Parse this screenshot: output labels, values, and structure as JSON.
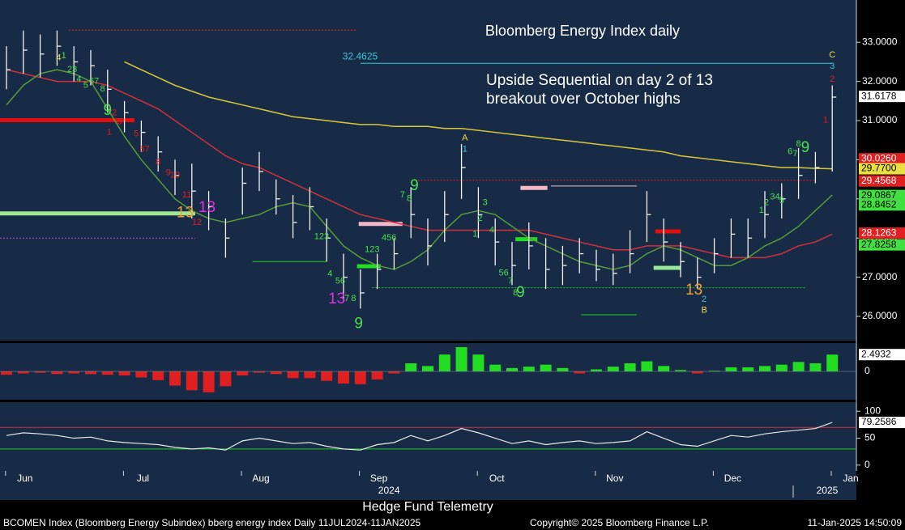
{
  "chart_data": {
    "type": "ohlc",
    "title": "Bloomberg Energy Index daily",
    "annotations": {
      "line1": "Upside Sequential on day 2 of 13",
      "line2": "breakout over October highs"
    },
    "level_line": {
      "value": 32.4625,
      "label": "32.4625",
      "color": "#3cc8d8",
      "from": 21,
      "to": 49
    },
    "categories": [
      null,
      "Jun",
      null,
      null,
      null,
      null,
      null,
      null,
      "Jul",
      null,
      null,
      null,
      null,
      null,
      null,
      "Aug",
      null,
      null,
      null,
      null,
      null,
      null,
      "Sep",
      null,
      null,
      null,
      null,
      null,
      null,
      "Oct",
      null,
      null,
      null,
      null,
      null,
      null,
      "Nov",
      null,
      null,
      null,
      null,
      null,
      null,
      "Dec",
      null,
      null,
      null,
      null,
      null,
      null,
      "Jan"
    ],
    "year_labels": [
      {
        "label": "2024",
        "at": 22.7
      },
      {
        "label": "2025",
        "at": 48.7
      }
    ],
    "high": [
      32.9,
      33.3,
      33.2,
      33.3,
      32.9,
      32.8,
      32.3,
      31.5,
      31.0,
      30.6,
      30.0,
      29.9,
      29.2,
      28.5,
      29.8,
      30.2,
      29.5,
      29.1,
      29.3,
      28.5,
      27.6,
      27.2,
      27.6,
      28.0,
      29.3,
      28.5,
      29.2,
      30.4,
      29.3,
      28.5,
      27.9,
      28.4,
      28.0,
      27.8,
      28.0,
      27.7,
      27.6,
      28.2,
      29.2,
      28.5,
      27.9,
      27.5,
      28.0,
      28.5,
      28.5,
      29.2,
      29.4,
      30.3,
      30.2,
      31.9,
      null
    ],
    "low": [
      31.8,
      32.2,
      32.1,
      32.4,
      32.0,
      31.9,
      31.2,
      30.7,
      30.2,
      29.7,
      29.1,
      28.5,
      28.2,
      27.5,
      28.6,
      29.2,
      28.6,
      28.0,
      28.2,
      27.4,
      26.4,
      26.2,
      26.7,
      27.2,
      28.0,
      27.3,
      27.9,
      29.0,
      28.0,
      27.3,
      26.8,
      27.2,
      26.7,
      26.8,
      27.1,
      26.9,
      26.8,
      27.1,
      27.9,
      27.4,
      27.0,
      26.7,
      27.1,
      27.5,
      27.5,
      28.0,
      28.5,
      29.0,
      29.4,
      29.7,
      null
    ],
    "close": [
      32.3,
      32.8,
      32.7,
      32.9,
      32.5,
      32.4,
      31.8,
      31.2,
      30.7,
      30.2,
      29.6,
      29.2,
      28.8,
      28.0,
      29.4,
      29.7,
      29.0,
      28.4,
      28.8,
      28.0,
      27.0,
      26.6,
      27.2,
      27.6,
      28.6,
      27.8,
      28.6,
      29.8,
      28.6,
      27.9,
      27.3,
      27.8,
      27.2,
      27.3,
      27.6,
      27.2,
      27.1,
      27.6,
      28.6,
      27.9,
      27.4,
      27.0,
      27.6,
      28.1,
      28.0,
      28.6,
      29.0,
      29.6,
      29.8,
      31.6,
      null
    ],
    "series": [
      {
        "color": "#d8c83a",
        "values": [
          null,
          null,
          null,
          null,
          null,
          null,
          null,
          32.5,
          32.3,
          32.1,
          31.9,
          31.75,
          31.6,
          31.5,
          31.4,
          31.3,
          31.2,
          31.1,
          31.05,
          31.0,
          30.95,
          30.9,
          30.9,
          30.85,
          30.85,
          30.85,
          30.8,
          30.8,
          30.75,
          30.7,
          30.65,
          30.6,
          30.55,
          30.5,
          30.45,
          30.4,
          30.35,
          30.3,
          30.25,
          30.2,
          30.1,
          30.05,
          30.0,
          29.95,
          29.9,
          29.85,
          29.8,
          29.8,
          29.78,
          29.77,
          null
        ]
      },
      {
        "color": "#d0303a",
        "values": [
          32.3,
          32.2,
          32.1,
          32.0,
          32.0,
          32.0,
          31.9,
          31.7,
          31.5,
          31.3,
          31.0,
          30.7,
          30.4,
          30.1,
          29.9,
          29.8,
          29.6,
          29.4,
          29.2,
          29.0,
          28.8,
          28.6,
          28.5,
          28.4,
          28.3,
          28.2,
          28.2,
          28.2,
          28.2,
          28.2,
          28.2,
          28.2,
          28.1,
          28.0,
          27.9,
          27.8,
          27.7,
          27.7,
          27.8,
          27.8,
          27.8,
          27.7,
          27.6,
          27.5,
          27.5,
          27.5,
          27.6,
          27.8,
          27.9,
          28.1,
          null
        ]
      },
      {
        "color": "#5a9a3a",
        "values": [
          31.4,
          31.9,
          32.2,
          32.3,
          32.2,
          32.0,
          31.3,
          30.6,
          30.0,
          29.5,
          29.0,
          28.7,
          28.5,
          28.4,
          28.5,
          28.6,
          28.8,
          28.9,
          28.8,
          28.3,
          27.8,
          27.5,
          27.3,
          27.2,
          27.4,
          27.7,
          28.2,
          28.6,
          28.7,
          28.6,
          28.3,
          28.0,
          27.8,
          27.6,
          27.4,
          27.3,
          27.2,
          27.3,
          27.6,
          27.8,
          27.7,
          27.5,
          27.3,
          27.3,
          27.5,
          27.8,
          28.0,
          28.3,
          28.7,
          29.1,
          null
        ]
      }
    ],
    "ylim": [
      25.38,
      34.08
    ],
    "yticks": [
      {
        "value": 26,
        "label": "26.0000"
      },
      {
        "value": 27,
        "label": "27.0000"
      },
      {
        "value": 28,
        "label": "28.0000"
      },
      {
        "value": 29,
        "label": "29.0000"
      },
      {
        "value": 30,
        "label": "30.0000"
      },
      {
        "value": 31,
        "label": "31.0000"
      },
      {
        "value": 32,
        "label": "32.0000"
      },
      {
        "value": 33,
        "label": "33.0000"
      }
    ],
    "value_tags": [
      {
        "value": 31.6178,
        "label": "31.6178",
        "color": "#ffffff"
      },
      {
        "value": 30.026,
        "label": "30.0260",
        "color": "#e02020"
      },
      {
        "value": 29.77,
        "label": "29.7700",
        "color": "#e8e040"
      },
      {
        "value": 29.4568,
        "label": "29.4568",
        "color": "#e02020"
      },
      {
        "value": 29.0867,
        "label": "29.0867",
        "color": "#40e040"
      },
      {
        "value": 28.8452,
        "label": "28.8452",
        "color": "#40e040"
      },
      {
        "value": 28.1263,
        "label": "28.1263",
        "color": "#e02020"
      },
      {
        "value": 27.8258,
        "label": "27.8258",
        "color": "#40e040"
      }
    ],
    "levels": [
      {
        "value": 31.01,
        "from": -0.4,
        "to": 7.6,
        "color": "#e01010",
        "style": "thick"
      },
      {
        "value": 28.63,
        "from": -0.4,
        "to": 11.2,
        "color": "#a0e890",
        "style": "thick"
      },
      {
        "value": 28.36,
        "from": 20.9,
        "to": 23.5,
        "color": "#f4b8c8",
        "style": "thick"
      },
      {
        "value": 29.28,
        "from": 30.5,
        "to": 32.1,
        "color": "#f4b8c8",
        "style": "thick"
      },
      {
        "value": 27.97,
        "from": 30.2,
        "to": 31.5,
        "color": "#22dd22",
        "style": "thick"
      },
      {
        "value": 27.28,
        "from": 20.8,
        "to": 22.2,
        "color": "#22dd22",
        "style": "thick"
      },
      {
        "value": 28.17,
        "from": 38.5,
        "to": 40,
        "color": "#e01010",
        "style": "thick"
      },
      {
        "value": 27.24,
        "from": 38.4,
        "to": 40,
        "color": "#9ae89a",
        "style": "thick"
      },
      {
        "value": 33.31,
        "from": 3.7,
        "to": 20.8,
        "color": "#e02020",
        "style": "dotted"
      },
      {
        "value": 28.0,
        "from": -0.4,
        "to": 11.2,
        "color": "#d040d0",
        "style": "dotted"
      },
      {
        "value": 26.73,
        "from": 21.7,
        "to": 47.4,
        "color": "#22cc22",
        "style": "dotted"
      },
      {
        "value": 29.48,
        "from": 24.4,
        "to": 48,
        "color": "#e02020",
        "style": "dotted"
      },
      {
        "value": 26.04,
        "from": 34.1,
        "to": 37.4,
        "color": "#22cc22",
        "style": "thin"
      },
      {
        "value": 27.4,
        "from": 14.6,
        "to": 19,
        "color": "#22cc22",
        "style": "thin"
      },
      {
        "value": 29.33,
        "from": 32.3,
        "to": 37.4,
        "color": "#f0c0c8",
        "style": "thin"
      }
    ],
    "td_labels": [
      {
        "text": "4",
        "color": "#e8e04a",
        "at": [
          3.1,
          32.6
        ]
      },
      {
        "text": "1",
        "color": "#4ce04c",
        "at": [
          3.4,
          32.65
        ]
      },
      {
        "text": "23",
        "color": "#4ce04c",
        "at": [
          3.9,
          32.3
        ]
      },
      {
        "text": "4",
        "color": "#4ce04c",
        "at": [
          4.3,
          32.05
        ]
      },
      {
        "text": "5",
        "color": "#4ce04c",
        "at": [
          4.7,
          31.9
        ]
      },
      {
        "text": "67",
        "color": "#4ce04c",
        "at": [
          5.2,
          32.0
        ]
      },
      {
        "text": "8",
        "color": "#4ce04c",
        "at": [
          5.7,
          31.8
        ]
      },
      {
        "text": "9",
        "color": "#4ce04c",
        "at": [
          6.0,
          31.25
        ],
        "size": "big"
      },
      {
        "text": "1",
        "color": "#e02020",
        "at": [
          6.1,
          30.7
        ]
      },
      {
        "text": "2",
        "color": "#e02020",
        "at": [
          6.4,
          31.2
        ]
      },
      {
        "text": "3",
        "color": "#e02020",
        "at": [
          6.7,
          30.97
        ]
      },
      {
        "text": "5",
        "color": "#e02020",
        "at": [
          7.7,
          30.66
        ]
      },
      {
        "text": "67",
        "color": "#e02020",
        "at": [
          8.2,
          30.27
        ]
      },
      {
        "text": "8",
        "color": "#e02020",
        "at": [
          9.0,
          29.93
        ]
      },
      {
        "text": "9",
        "color": "#e02020",
        "at": [
          9.6,
          29.67
        ]
      },
      {
        "text": "10",
        "color": "#e02020",
        "at": [
          10.0,
          29.6
        ]
      },
      {
        "text": "11",
        "color": "#e02020",
        "at": [
          10.7,
          29.1
        ]
      },
      {
        "text": "13",
        "color": "#f0a030",
        "at": [
          10.6,
          28.63
        ],
        "size": "big"
      },
      {
        "text": "13",
        "color": "#e030e0",
        "at": [
          11.9,
          28.77
        ],
        "size": "big"
      },
      {
        "text": "12",
        "color": "#e02020",
        "at": [
          11.3,
          28.4
        ]
      },
      {
        "text": "123",
        "color": "#4ce04c",
        "at": [
          18.7,
          28.03
        ]
      },
      {
        "text": "4",
        "color": "#4ce04c",
        "at": [
          19.2,
          27.08
        ]
      },
      {
        "text": "56",
        "color": "#4ce04c",
        "at": [
          19.8,
          26.9
        ]
      },
      {
        "text": "7",
        "color": "#4ce04c",
        "at": [
          20.2,
          26.45
        ]
      },
      {
        "text": "8",
        "color": "#4ce04c",
        "at": [
          20.6,
          26.45
        ]
      },
      {
        "text": "13",
        "color": "#e030e0",
        "at": [
          19.6,
          26.43
        ],
        "size": "big"
      },
      {
        "text": "9",
        "color": "#4ce04c",
        "at": [
          20.9,
          25.8
        ],
        "size": "big"
      },
      {
        "text": "123",
        "color": "#4ce04c",
        "at": [
          21.7,
          27.7
        ]
      },
      {
        "text": "456",
        "color": "#4ce04c",
        "at": [
          22.7,
          28.0
        ]
      },
      {
        "text": "7",
        "color": "#4ce04c",
        "at": [
          23.5,
          29.1
        ]
      },
      {
        "text": "8",
        "color": "#4ce04c",
        "at": [
          23.9,
          29.0
        ]
      },
      {
        "text": "9",
        "color": "#4ce04c",
        "at": [
          24.2,
          29.33
        ],
        "size": "big"
      },
      {
        "text": "A",
        "color": "#e8e04a",
        "at": [
          27.2,
          30.55
        ]
      },
      {
        "text": "1",
        "color": "#3cc8d8",
        "at": [
          27.2,
          30.27
        ]
      },
      {
        "text": "3",
        "color": "#4ce04c",
        "at": [
          28.4,
          28.9
        ]
      },
      {
        "text": "2",
        "color": "#4ce04c",
        "at": [
          28.1,
          28.5
        ]
      },
      {
        "text": "4",
        "color": "#4ce04c",
        "at": [
          28.8,
          28.2
        ]
      },
      {
        "text": "1",
        "color": "#4ce04c",
        "at": [
          27.8,
          28.1
        ]
      },
      {
        "text": "56",
        "color": "#4ce04c",
        "at": [
          29.5,
          27.1
        ]
      },
      {
        "text": "7",
        "color": "#4ce04c",
        "at": [
          29.9,
          26.9
        ]
      },
      {
        "text": "8",
        "color": "#4ce04c",
        "at": [
          30.2,
          26.6
        ]
      },
      {
        "text": "9",
        "color": "#4ce04c",
        "at": [
          30.5,
          26.6
        ],
        "size": "big"
      },
      {
        "text": "13",
        "color": "#f0a030",
        "at": [
          40.8,
          26.66
        ],
        "size": "big"
      },
      {
        "text": "2",
        "color": "#3cc8d8",
        "at": [
          41.4,
          26.43
        ]
      },
      {
        "text": "B",
        "color": "#e8e04a",
        "at": [
          41.4,
          26.15
        ]
      },
      {
        "text": "1",
        "color": "#4ce04c",
        "at": [
          44.8,
          28.7
        ]
      },
      {
        "text": "2",
        "color": "#4ce04c",
        "at": [
          45.1,
          28.9
        ]
      },
      {
        "text": "34",
        "color": "#4ce04c",
        "at": [
          45.6,
          29.05
        ]
      },
      {
        "text": "5",
        "color": "#4ce04c",
        "at": [
          46.0,
          28.95
        ]
      },
      {
        "text": "6",
        "color": "#4ce04c",
        "at": [
          46.5,
          30.2
        ]
      },
      {
        "text": "7",
        "color": "#4ce04c",
        "at": [
          46.8,
          30.15
        ]
      },
      {
        "text": "8",
        "color": "#4ce04c",
        "at": [
          47.0,
          30.4
        ]
      },
      {
        "text": "9",
        "color": "#4ce04c",
        "at": [
          47.4,
          30.3
        ],
        "size": "big"
      },
      {
        "text": "C",
        "color": "#e8e04a",
        "at": [
          49.0,
          32.67
        ]
      },
      {
        "text": "3",
        "color": "#3cc8d8",
        "at": [
          49.0,
          32.38
        ]
      },
      {
        "text": "2",
        "color": "#e02020",
        "at": [
          49.0,
          32.05
        ]
      },
      {
        "text": "1",
        "color": "#e02020",
        "at": [
          48.6,
          31.01
        ]
      }
    ],
    "hist": {
      "ylim": [
        -4.2,
        4.2
      ],
      "yticks": [
        0
      ],
      "color_up": "#22dd22",
      "color_down": "#e02020",
      "tag": {
        "value": 2.4932,
        "label": "2.4932"
      },
      "values": [
        -0.5,
        -0.3,
        -0.2,
        -0.4,
        -0.3,
        -0.4,
        -0.5,
        -0.6,
        -0.9,
        -1.3,
        -2.1,
        -2.8,
        -3.1,
        -2.2,
        -0.6,
        -0.2,
        -0.4,
        -1.0,
        -1.0,
        -1.4,
        -1.8,
        -1.9,
        -1.2,
        -0.3,
        1.2,
        0.8,
        2.5,
        3.6,
        2.5,
        1.0,
        0.5,
        0.7,
        1.0,
        0.5,
        -0.3,
        0.3,
        0.7,
        1.2,
        1.5,
        0.8,
        0.2,
        -0.3,
        0.1,
        0.6,
        0.6,
        0.8,
        1.0,
        1.4,
        1.2,
        2.4932,
        null
      ]
    },
    "rsi": {
      "ylim": [
        -10.8,
        116.9
      ],
      "yticks": [
        0,
        50,
        100
      ],
      "upper": 70,
      "lower": 30,
      "color": "#e8e8e8",
      "tag": {
        "value": 79.2586,
        "label": "79.2586"
      },
      "values": [
        55,
        60,
        58,
        55,
        50,
        52,
        45,
        42,
        40,
        38,
        33,
        30,
        32,
        28,
        45,
        50,
        45,
        40,
        42,
        35,
        30,
        28,
        38,
        42,
        55,
        45,
        55,
        68,
        60,
        50,
        40,
        45,
        38,
        42,
        45,
        40,
        42,
        45,
        62,
        50,
        38,
        35,
        45,
        55,
        52,
        58,
        62,
        65,
        68,
        79.2586,
        null
      ]
    }
  },
  "footer": {
    "brand": "Hedge Fund Telemetry",
    "security": "BCOMEN Index (Bloomberg Energy Subindex) bberg energy index  Daily 11JUL2024-11JAN2025",
    "copyright": "Copyright© 2025 Bloomberg Finance L.P.",
    "timestamp": "11-Jan-2025 14:50:09"
  }
}
